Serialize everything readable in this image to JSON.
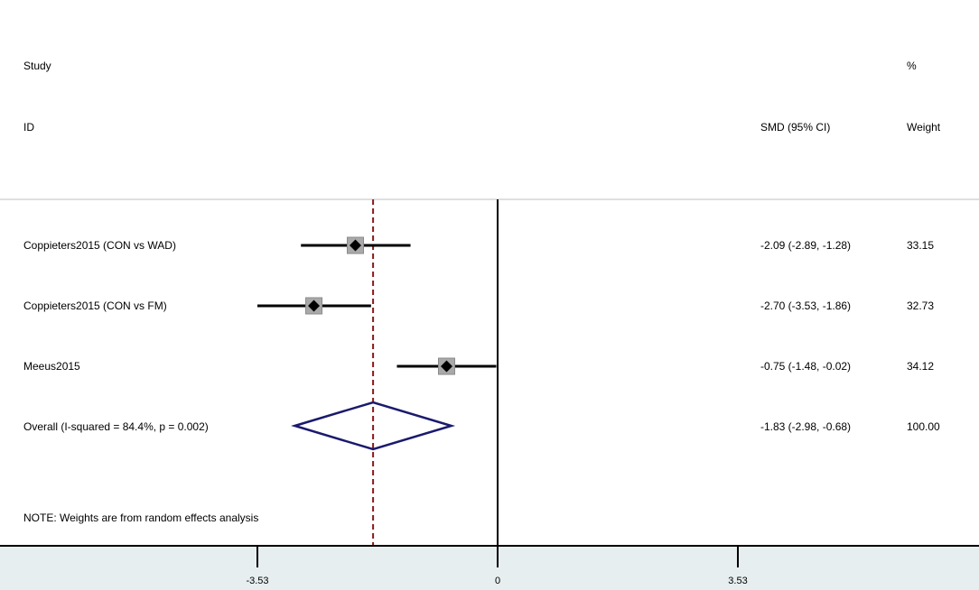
{
  "header": {
    "study": "Study",
    "id": "ID",
    "percent": "%",
    "smd": "SMD (95% CI)",
    "weight": "Weight"
  },
  "note": "NOTE: Weights are from random effects analysis",
  "colors": {
    "line": "#000000",
    "diamond": "#1a1a6e",
    "reference": "#8b1a1a",
    "box": "#a9a9a9",
    "axis_band": "#e6eef0"
  },
  "chart_data": {
    "type": "forest",
    "xlim": [
      -5.12,
      4.05
    ],
    "xticks": [
      -3.53,
      0,
      3.53
    ],
    "xtick_labels": [
      "-3.53",
      "0",
      "3.53"
    ],
    "null_line": 0,
    "overall_line": -1.83,
    "studies": [
      {
        "label": "Coppieters2015 (CON vs WAD)",
        "est": -2.09,
        "lo": -2.89,
        "hi": -1.28,
        "ci_text": "-2.09 (-2.89, -1.28)",
        "weight": 33.15,
        "weight_text": "33.15"
      },
      {
        "label": "Coppieters2015 (CON vs FM)",
        "est": -2.7,
        "lo": -3.53,
        "hi": -1.86,
        "ci_text": "-2.70 (-3.53, -1.86)",
        "weight": 32.73,
        "weight_text": "32.73"
      },
      {
        "label": "Meeus2015",
        "est": -0.75,
        "lo": -1.48,
        "hi": -0.02,
        "ci_text": "-0.75 (-1.48, -0.02)",
        "weight": 34.12,
        "weight_text": "34.12"
      }
    ],
    "overall": {
      "label": "Overall  (I-squared = 84.4%, p = 0.002)",
      "est": -1.83,
      "lo": -2.98,
      "hi": -0.68,
      "ci_text": "-1.83 (-2.98, -0.68)",
      "weight_text": "100.00"
    }
  }
}
